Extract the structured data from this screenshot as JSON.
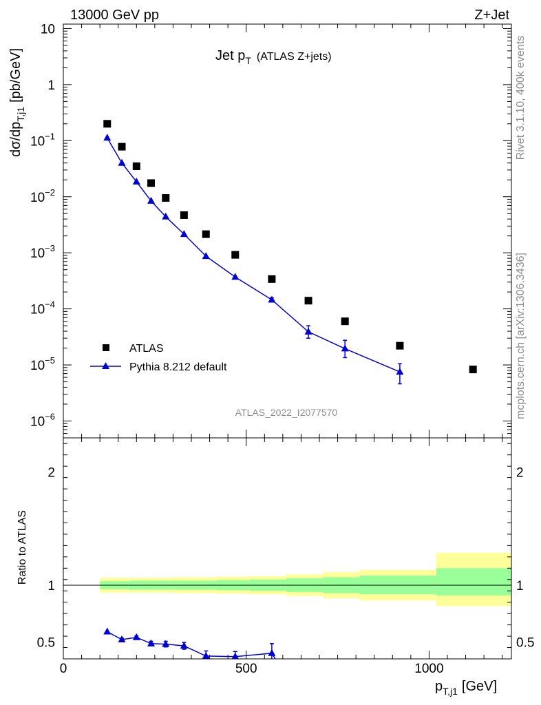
{
  "header": {
    "left": "13000 GeV pp",
    "right": "Z+Jet"
  },
  "side": {
    "rivet": "Rivet 3.1.10,  400k events",
    "mcplots": "mcplots.cern.ch [arXiv:1306.3436]"
  },
  "chart_data": {
    "type": "scatter",
    "title": "Jet p_T (ATLAS Z+jets)",
    "title_main": "Jet p",
    "title_sub": "T",
    "title_suffix": "(ATLAS Z+jets)",
    "analysis_id": "ATLAS_2022_I2077570",
    "ylabel": "dσ/dp_T,j1 [pb/GeV]",
    "ylabel_main": "dσ/dp",
    "ylabel_sub": "T,j1",
    "ylabel_suffix": "[pb/GeV]",
    "xlabel": "p_T,j1 [GeV]",
    "xlabel_main": "p",
    "xlabel_sub": "T,j1",
    "xlabel_suffix": "[GeV]",
    "ratio_ylabel": "Ratio to ATLAS",
    "xlim": [
      0,
      1225
    ],
    "ylim": [
      5e-07,
      12
    ],
    "ratio_ylim": [
      0.35,
      2.3
    ],
    "x_ticks": [
      0,
      500,
      1000
    ],
    "x_tick_labels": [
      "0",
      "500",
      "1000"
    ],
    "y_tick_labels": [
      {
        "v": 10,
        "base": "10",
        "exp": ""
      },
      {
        "v": 1,
        "base": "1",
        "exp": ""
      },
      {
        "v": 0.1,
        "base": "10",
        "exp": "−1"
      },
      {
        "v": 0.01,
        "base": "10",
        "exp": "−2"
      },
      {
        "v": 0.001,
        "base": "10",
        "exp": "−3"
      },
      {
        "v": 0.0001,
        "base": "10",
        "exp": "−4"
      },
      {
        "v": 1e-05,
        "base": "10",
        "exp": "−5"
      },
      {
        "v": 1e-06,
        "base": "10",
        "exp": "−6"
      }
    ],
    "ratio_tick_labels": [
      {
        "v": 2,
        "label": "2"
      },
      {
        "v": 1,
        "label": "1"
      },
      {
        "v": 0.5,
        "label": "0.5"
      }
    ],
    "legend": [
      "ATLAS",
      "Pythia 8.212 default"
    ],
    "series": [
      {
        "name": "ATLAS",
        "color": "#000000",
        "x": [
          120,
          160,
          200,
          240,
          280,
          330,
          390,
          470,
          570,
          670,
          770,
          920,
          1120
        ],
        "values": [
          0.2,
          0.078,
          0.035,
          0.0175,
          0.0095,
          0.0047,
          0.00215,
          0.00092,
          0.00034,
          0.00014,
          6e-05,
          2.2e-05,
          8.3e-06
        ]
      },
      {
        "name": "Pythia 8.212 default",
        "color": "#0000d0",
        "x": [
          120,
          160,
          200,
          240,
          280,
          330,
          390,
          470,
          570,
          670,
          770,
          920
        ],
        "values": [
          0.112,
          0.04,
          0.0185,
          0.0084,
          0.0044,
          0.00215,
          0.00087,
          0.00037,
          0.000145,
          3.9e-05,
          1.95e-05,
          7.5e-06
        ],
        "err_lo": [
          0,
          0,
          0,
          0,
          0,
          0,
          0,
          0,
          1.2e-05,
          9e-06,
          6e-06,
          2.9e-06
        ],
        "err_hi": [
          0,
          0,
          0,
          0,
          0,
          0,
          0,
          0,
          1.2e-05,
          1.1e-05,
          8e-06,
          3e-06
        ]
      }
    ],
    "ratio": {
      "x": [
        120,
        160,
        200,
        240,
        280,
        330,
        390,
        470,
        570
      ],
      "values": [
        0.59,
        0.52,
        0.54,
        0.485,
        0.48,
        0.465,
        0.375,
        0.37,
        0.4
      ],
      "err": [
        0,
        0.012,
        0.012,
        0.02,
        0.025,
        0.03,
        0.045,
        0.045,
        0.085
      ],
      "bands": [
        {
          "x0": 100,
          "x1": 140,
          "inner": [
            0.965,
            1.035
          ],
          "outer": [
            0.935,
            1.065
          ]
        },
        {
          "x0": 140,
          "x1": 180,
          "inner": [
            0.965,
            1.035
          ],
          "outer": [
            0.935,
            1.065
          ]
        },
        {
          "x0": 180,
          "x1": 220,
          "inner": [
            0.96,
            1.04
          ],
          "outer": [
            0.935,
            1.065
          ]
        },
        {
          "x0": 220,
          "x1": 260,
          "inner": [
            0.96,
            1.04
          ],
          "outer": [
            0.935,
            1.065
          ]
        },
        {
          "x0": 260,
          "x1": 300,
          "inner": [
            0.96,
            1.04
          ],
          "outer": [
            0.935,
            1.065
          ]
        },
        {
          "x0": 300,
          "x1": 360,
          "inner": [
            0.96,
            1.04
          ],
          "outer": [
            0.93,
            1.07
          ]
        },
        {
          "x0": 360,
          "x1": 420,
          "inner": [
            0.96,
            1.04
          ],
          "outer": [
            0.93,
            1.07
          ]
        },
        {
          "x0": 420,
          "x1": 510,
          "inner": [
            0.955,
            1.045
          ],
          "outer": [
            0.925,
            1.075
          ]
        },
        {
          "x0": 510,
          "x1": 610,
          "inner": [
            0.95,
            1.05
          ],
          "outer": [
            0.92,
            1.08
          ]
        },
        {
          "x0": 610,
          "x1": 710,
          "inner": [
            0.94,
            1.06
          ],
          "outer": [
            0.905,
            1.095
          ]
        },
        {
          "x0": 710,
          "x1": 810,
          "inner": [
            0.93,
            1.07
          ],
          "outer": [
            0.885,
            1.115
          ]
        },
        {
          "x0": 810,
          "x1": 1020,
          "inner": [
            0.92,
            1.085
          ],
          "outer": [
            0.865,
            1.135
          ]
        },
        {
          "x0": 1020,
          "x1": 1225,
          "inner": [
            0.91,
            1.15
          ],
          "outer": [
            0.815,
            1.285
          ]
        }
      ]
    },
    "colors": {
      "data": "#000000",
      "mc": "#0000d0",
      "band_inner": "#99ff99",
      "band_outer": "#ffff99"
    }
  }
}
